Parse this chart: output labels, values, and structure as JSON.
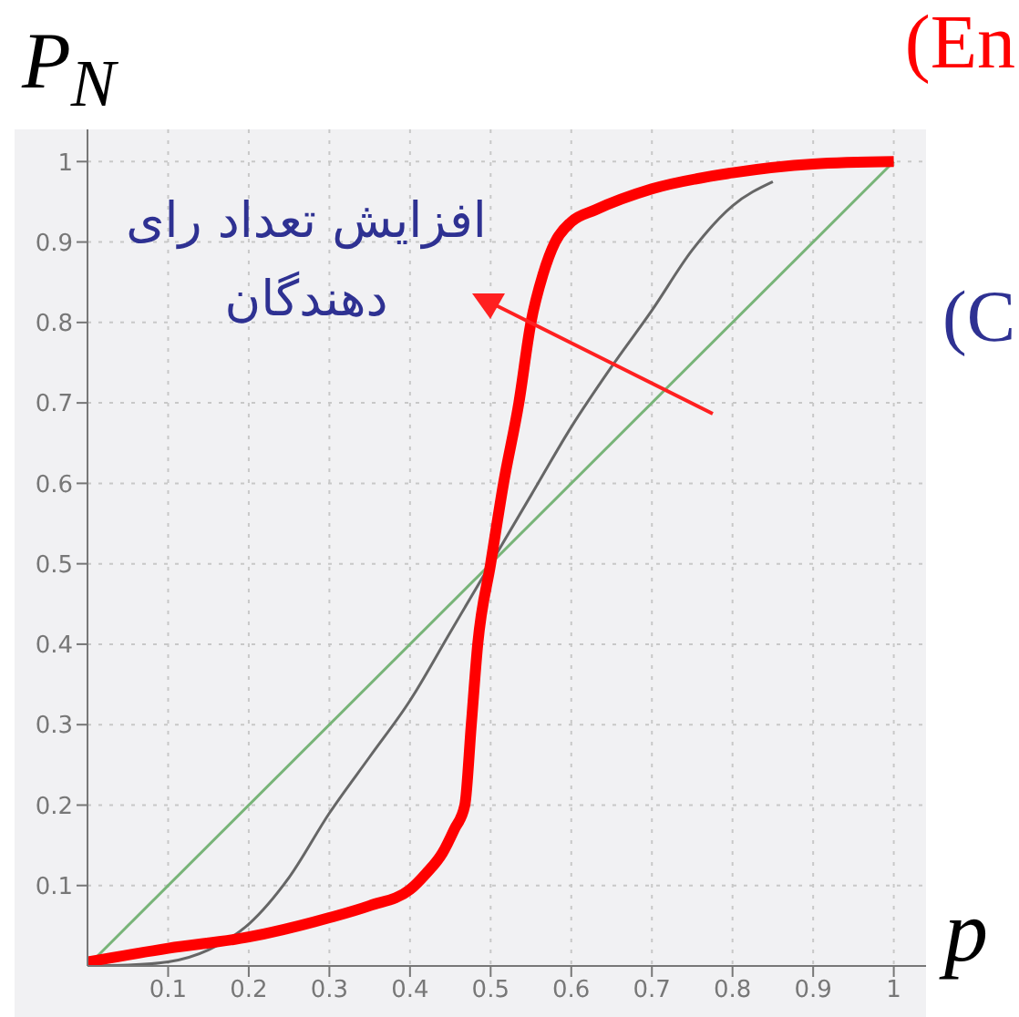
{
  "chart_data": {
    "type": "line",
    "xlabel": "p",
    "ylabel": "P$_{N}$",
    "annotations": [
      "افزایش تعداد رای دهندگان",
      "(En",
      "(C"
    ],
    "xlim": [
      0,
      1.04
    ],
    "ylim": [
      0,
      1.04
    ],
    "xticks": [
      0.1,
      0.2,
      0.3,
      0.4,
      0.5,
      0.6,
      0.7,
      0.8,
      0.9,
      1
    ],
    "yticks": [
      0.1,
      0.2,
      0.3,
      0.4,
      0.5,
      0.6,
      0.7,
      0.8,
      0.9,
      1
    ],
    "grid": true,
    "marker": "none",
    "line_style": "solid",
    "series": [
      {
        "color": "#78b478",
        "x": [
          0,
          1
        ],
        "values": [
          0,
          1
        ]
      },
      {
        "color": "#666666",
        "x": [
          0,
          0.05,
          0.1,
          0.15,
          0.2,
          0.25,
          0.3,
          0.35,
          0.4,
          0.45,
          0.5,
          0.55,
          0.6,
          0.65,
          0.7,
          0.75,
          0.8,
          0.85
        ],
        "values": [
          0,
          0.001,
          0.005,
          0.02,
          0.052,
          0.11,
          0.19,
          0.26,
          0.33,
          0.415,
          0.5,
          0.585,
          0.67,
          0.745,
          0.815,
          0.89,
          0.945,
          0.975
        ]
      },
      {
        "color": "#ff0000",
        "x": [
          0,
          0.1,
          0.2,
          0.3,
          0.35,
          0.4,
          0.42,
          0.44,
          0.455,
          0.468,
          0.476,
          0.484,
          0.5,
          0.516,
          0.535,
          0.55,
          0.565,
          0.58,
          0.6,
          0.63,
          0.7,
          0.8,
          0.9,
          1
        ],
        "values": [
          0.005,
          0.022,
          0.036,
          0.06,
          0.075,
          0.095,
          0.115,
          0.14,
          0.17,
          0.2,
          0.3,
          0.4,
          0.5,
          0.6,
          0.7,
          0.8,
          0.86,
          0.9,
          0.925,
          0.94,
          0.966,
          0.986,
          0.997,
          1
        ]
      }
    ]
  }
}
